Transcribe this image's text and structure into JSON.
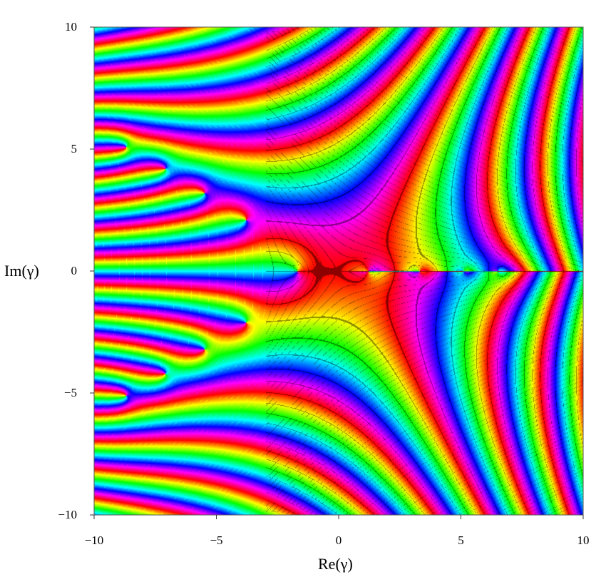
{
  "chart_data": {
    "type": "heatmap",
    "title": "",
    "xlabel": "Re(γ)",
    "ylabel": "Im(γ)",
    "xlim": [
      -10,
      10
    ],
    "ylim": [
      -10,
      10
    ],
    "x_ticks": [
      "−10",
      "−5",
      "0",
      "5",
      "10"
    ],
    "y_ticks": [
      "10",
      "5",
      "0",
      "−5",
      "−10"
    ],
    "x_tick_values": [
      -10,
      -5,
      0,
      5,
      10
    ],
    "y_tick_values": [
      10,
      5,
      0,
      -5,
      -10
    ],
    "color_encoding": "phase (hue)",
    "zeros": [
      {
        "re": -1.7,
        "im": 0
      },
      {
        "re": 1.2,
        "im": 0
      },
      {
        "re": 3.3,
        "im": 0
      },
      {
        "re": 5.1,
        "im": 0
      },
      {
        "re": 6.5,
        "im": 0
      },
      {
        "re": -3.8,
        "im": 2.1
      },
      {
        "re": -3.8,
        "im": -2.1
      },
      {
        "re": -5.5,
        "im": 3.2
      },
      {
        "re": -5.5,
        "im": -3.2
      },
      {
        "re": -7.1,
        "im": 4.2
      },
      {
        "re": -7.1,
        "im": -4.2
      },
      {
        "re": -8.7,
        "im": 5.1
      },
      {
        "re": -8.7,
        "im": -5.1
      }
    ],
    "grid": false
  }
}
